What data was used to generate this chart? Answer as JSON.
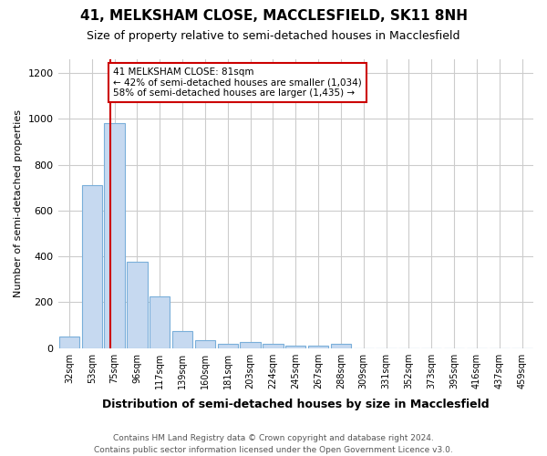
{
  "title": "41, MELKSHAM CLOSE, MACCLESFIELD, SK11 8NH",
  "subtitle": "Size of property relative to semi-detached houses in Macclesfield",
  "xlabel": "Distribution of semi-detached houses by size in Macclesfield",
  "ylabel": "Number of semi-detached properties",
  "footer": "Contains HM Land Registry data © Crown copyright and database right 2024.\nContains public sector information licensed under the Open Government Licence v3.0.",
  "bins": [
    "32sqm",
    "53sqm",
    "75sqm",
    "96sqm",
    "117sqm",
    "139sqm",
    "160sqm",
    "181sqm",
    "203sqm",
    "224sqm",
    "245sqm",
    "267sqm",
    "288sqm",
    "309sqm",
    "331sqm",
    "352sqm",
    "373sqm",
    "395sqm",
    "416sqm",
    "437sqm",
    "459sqm"
  ],
  "values": [
    50,
    710,
    980,
    375,
    225,
    75,
    35,
    20,
    25,
    20,
    10,
    10,
    20,
    0,
    0,
    0,
    0,
    0,
    0,
    0,
    0
  ],
  "bar_color": "#c6d9f0",
  "bar_edge_color": "#7aafda",
  "red_line_color": "#cc0000",
  "annotation_text": "41 MELKSHAM CLOSE: 81sqm\n← 42% of semi-detached houses are smaller (1,034)\n58% of semi-detached houses are larger (1,435) →",
  "annotation_box_color": "#ffffff",
  "annotation_box_edge": "#cc0000",
  "ylim": [
    0,
    1260
  ],
  "yticks": [
    0,
    200,
    400,
    600,
    800,
    1000,
    1200
  ],
  "background_color": "#ffffff",
  "grid_color": "#cccccc"
}
